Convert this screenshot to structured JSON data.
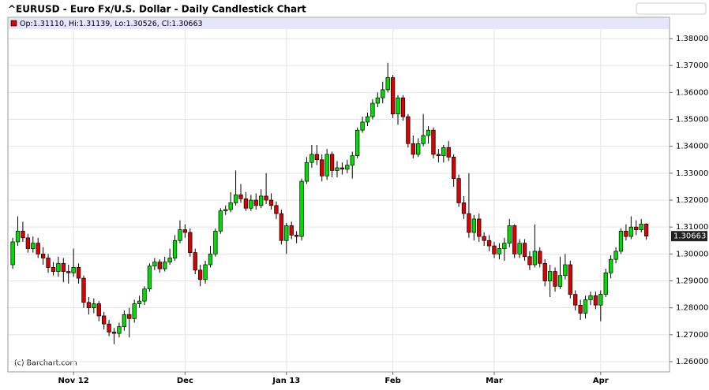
{
  "chart_data": {
    "type": "candlestick",
    "title": "^EURUSD - Euro Fx/U.S. Dollar - Daily Candlestick Chart",
    "legend_text": "Op:1.31110, Hi:1.31139, Lo:1.30526, Cl:1.30663",
    "credit": "(c) Barchart.com",
    "up_color": "#00dd00",
    "down_color": "#dd0000",
    "grid": true,
    "last_price": {
      "value": 1.30663,
      "label": "1.30663"
    },
    "ylim": [
      1.2562,
      1.3879
    ],
    "yticks": [
      {
        "value": 1.26,
        "label": "1.26000"
      },
      {
        "value": 1.27,
        "label": "1.27000"
      },
      {
        "value": 1.28,
        "label": "1.28000"
      },
      {
        "value": 1.29,
        "label": "1.29000"
      },
      {
        "value": 1.3,
        "label": "1.30000"
      },
      {
        "value": 1.31,
        "label": "1.31000"
      },
      {
        "value": 1.32,
        "label": "1.32000"
      },
      {
        "value": 1.33,
        "label": "1.33000"
      },
      {
        "value": 1.34,
        "label": "1.34000"
      },
      {
        "value": 1.35,
        "label": "1.35000"
      },
      {
        "value": 1.36,
        "label": "1.36000"
      },
      {
        "value": 1.37,
        "label": "1.37000"
      },
      {
        "value": 1.38,
        "label": "1.38000"
      }
    ],
    "categories": [
      null,
      null,
      null,
      null,
      null,
      null,
      null,
      null,
      null,
      null,
      null,
      null,
      "Nov 12",
      null,
      null,
      null,
      null,
      null,
      null,
      null,
      null,
      null,
      null,
      null,
      null,
      null,
      null,
      null,
      null,
      null,
      null,
      null,
      null,
      null,
      "Dec",
      null,
      null,
      null,
      null,
      null,
      null,
      null,
      null,
      null,
      null,
      null,
      null,
      null,
      null,
      null,
      null,
      null,
      null,
      null,
      "Jan 13",
      null,
      null,
      null,
      null,
      null,
      null,
      null,
      null,
      null,
      null,
      null,
      null,
      null,
      null,
      null,
      null,
      null,
      null,
      null,
      null,
      "Feb",
      null,
      null,
      null,
      null,
      null,
      null,
      null,
      null,
      null,
      null,
      null,
      null,
      null,
      null,
      null,
      null,
      null,
      null,
      null,
      "Mar",
      null,
      null,
      null,
      null,
      null,
      null,
      null,
      null,
      null,
      null,
      null,
      null,
      null,
      null,
      null,
      null,
      null,
      null,
      null,
      null,
      "Apr",
      null,
      null,
      null,
      null,
      null,
      null,
      null,
      null,
      null
    ],
    "open": [
      1.296,
      1.3045,
      1.3085,
      1.306,
      1.302,
      1.304,
      1.3,
      1.2985,
      1.295,
      1.2935,
      1.2965,
      1.2935,
      1.293,
      1.295,
      1.291,
      1.282,
      1.28,
      1.2815,
      1.277,
      1.274,
      1.271,
      1.2705,
      1.273,
      1.2775,
      1.276,
      1.2815,
      1.2825,
      1.287,
      1.2955,
      1.297,
      1.2945,
      1.297,
      1.2985,
      1.305,
      1.309,
      1.308,
      1.3005,
      1.294,
      1.2905,
      1.296,
      1.3,
      1.3085,
      1.316,
      1.3165,
      1.319,
      1.322,
      1.3205,
      1.317,
      1.32,
      1.318,
      1.3215,
      1.32,
      1.318,
      1.315,
      1.305,
      1.3105,
      1.307,
      1.3065,
      1.327,
      1.334,
      1.337,
      1.335,
      1.329,
      1.337,
      1.331,
      1.332,
      1.3315,
      1.333,
      1.3365,
      1.346,
      1.349,
      1.351,
      1.356,
      1.358,
      1.361,
      1.3655,
      1.352,
      1.358,
      1.351,
      1.341,
      1.337,
      1.341,
      1.344,
      1.346,
      1.337,
      1.3365,
      1.3395,
      1.336,
      1.328,
      1.319,
      1.315,
      1.308,
      1.313,
      1.3065,
      1.305,
      1.303,
      1.3,
      1.302,
      1.304,
      1.3105,
      1.3,
      1.304,
      1.299,
      1.296,
      1.301,
      1.2965,
      1.29,
      1.2935,
      1.288,
      1.292,
      1.296,
      1.285,
      1.281,
      1.278,
      1.283,
      1.2845,
      1.281,
      1.285,
      1.293,
      1.298,
      1.301,
      1.3085,
      1.3065,
      1.31,
      1.309,
      1.3111
    ],
    "high": [
      1.306,
      1.314,
      1.312,
      1.3075,
      1.3065,
      1.306,
      1.3025,
      1.3,
      1.297,
      1.299,
      1.2985,
      1.296,
      1.302,
      1.2965,
      1.292,
      1.284,
      1.2835,
      1.2825,
      1.2785,
      1.2755,
      1.2725,
      1.2745,
      1.279,
      1.28,
      1.283,
      1.2845,
      1.288,
      1.2965,
      1.2985,
      1.298,
      1.299,
      1.302,
      1.307,
      1.3125,
      1.311,
      1.3095,
      1.302,
      1.296,
      1.2975,
      1.303,
      1.3095,
      1.317,
      1.318,
      1.323,
      1.331,
      1.326,
      1.323,
      1.322,
      1.3225,
      1.324,
      1.33,
      1.3225,
      1.3195,
      1.3165,
      1.3115,
      1.312,
      1.3085,
      1.328,
      1.336,
      1.3405,
      1.3405,
      1.337,
      1.339,
      1.338,
      1.3345,
      1.334,
      1.335,
      1.338,
      1.347,
      1.351,
      1.3525,
      1.3575,
      1.36,
      1.364,
      1.371,
      1.3665,
      1.359,
      1.359,
      1.352,
      1.344,
      1.343,
      1.352,
      1.3475,
      1.347,
      1.339,
      1.3405,
      1.342,
      1.337,
      1.3295,
      1.3215,
      1.33,
      1.3145,
      1.315,
      1.308,
      1.307,
      1.3045,
      1.304,
      1.306,
      1.313,
      1.311,
      1.3055,
      1.3055,
      1.301,
      1.311,
      1.3025,
      1.298,
      1.296,
      1.295,
      1.299,
      1.3,
      1.2975,
      1.2865,
      1.283,
      1.2845,
      1.286,
      1.286,
      1.2865,
      1.2945,
      1.2995,
      1.3025,
      1.3095,
      1.311,
      1.314,
      1.3125,
      1.313,
      1.31139
    ],
    "low": [
      1.2945,
      1.303,
      1.3045,
      1.3005,
      1.3005,
      1.2985,
      1.296,
      1.293,
      1.292,
      1.2915,
      1.2895,
      1.289,
      1.2915,
      1.289,
      1.28,
      1.2775,
      1.278,
      1.275,
      1.272,
      1.2695,
      1.2665,
      1.269,
      1.2715,
      1.269,
      1.2745,
      1.28,
      1.281,
      1.286,
      1.294,
      1.293,
      1.2935,
      1.296,
      1.2975,
      1.304,
      1.306,
      1.299,
      1.2925,
      1.288,
      1.289,
      1.295,
      1.299,
      1.3075,
      1.3145,
      1.3155,
      1.318,
      1.319,
      1.316,
      1.316,
      1.3165,
      1.317,
      1.3185,
      1.3165,
      1.313,
      1.3035,
      1.3,
      1.3055,
      1.304,
      1.305,
      1.326,
      1.332,
      1.333,
      1.327,
      1.3275,
      1.3285,
      1.3285,
      1.3295,
      1.33,
      1.328,
      1.3355,
      1.345,
      1.3475,
      1.35,
      1.3545,
      1.356,
      1.36,
      1.3505,
      1.348,
      1.3495,
      1.3395,
      1.3355,
      1.336,
      1.34,
      1.341,
      1.3355,
      1.334,
      1.334,
      1.3345,
      1.325,
      1.3175,
      1.313,
      1.306,
      1.305,
      1.3045,
      1.303,
      1.301,
      1.2985,
      1.298,
      1.2975,
      1.3025,
      1.2985,
      1.2985,
      1.2975,
      1.294,
      1.295,
      1.295,
      1.288,
      1.284,
      1.286,
      1.287,
      1.2905,
      1.2835,
      1.279,
      1.2755,
      1.276,
      1.281,
      1.2795,
      1.275,
      1.284,
      1.291,
      1.2965,
      1.3,
      1.305,
      1.3055,
      1.307,
      1.308,
      1.30526
    ],
    "close": [
      1.3045,
      1.3085,
      1.306,
      1.302,
      1.304,
      1.3,
      1.2985,
      1.295,
      1.2935,
      1.2965,
      1.2935,
      1.293,
      1.295,
      1.291,
      1.282,
      1.28,
      1.2815,
      1.277,
      1.274,
      1.271,
      1.2705,
      1.273,
      1.2775,
      1.276,
      1.2815,
      1.2825,
      1.287,
      1.2955,
      1.297,
      1.2945,
      1.297,
      1.2985,
      1.305,
      1.309,
      1.308,
      1.3005,
      1.294,
      1.2905,
      1.296,
      1.3,
      1.3085,
      1.316,
      1.3165,
      1.319,
      1.322,
      1.3205,
      1.317,
      1.32,
      1.318,
      1.3215,
      1.32,
      1.318,
      1.315,
      1.305,
      1.3105,
      1.307,
      1.3065,
      1.327,
      1.334,
      1.337,
      1.335,
      1.329,
      1.337,
      1.331,
      1.332,
      1.3315,
      1.333,
      1.3365,
      1.346,
      1.349,
      1.351,
      1.356,
      1.358,
      1.361,
      1.3655,
      1.352,
      1.358,
      1.351,
      1.341,
      1.337,
      1.341,
      1.344,
      1.346,
      1.337,
      1.3365,
      1.3395,
      1.336,
      1.328,
      1.319,
      1.315,
      1.308,
      1.313,
      1.3065,
      1.305,
      1.303,
      1.3,
      1.302,
      1.304,
      1.3105,
      1.3,
      1.304,
      1.299,
      1.296,
      1.301,
      1.2965,
      1.29,
      1.2935,
      1.288,
      1.292,
      1.296,
      1.285,
      1.281,
      1.278,
      1.283,
      1.2845,
      1.281,
      1.285,
      1.293,
      1.298,
      1.301,
      1.3085,
      1.3065,
      1.31,
      1.309,
      1.3111,
      1.30663
    ]
  }
}
